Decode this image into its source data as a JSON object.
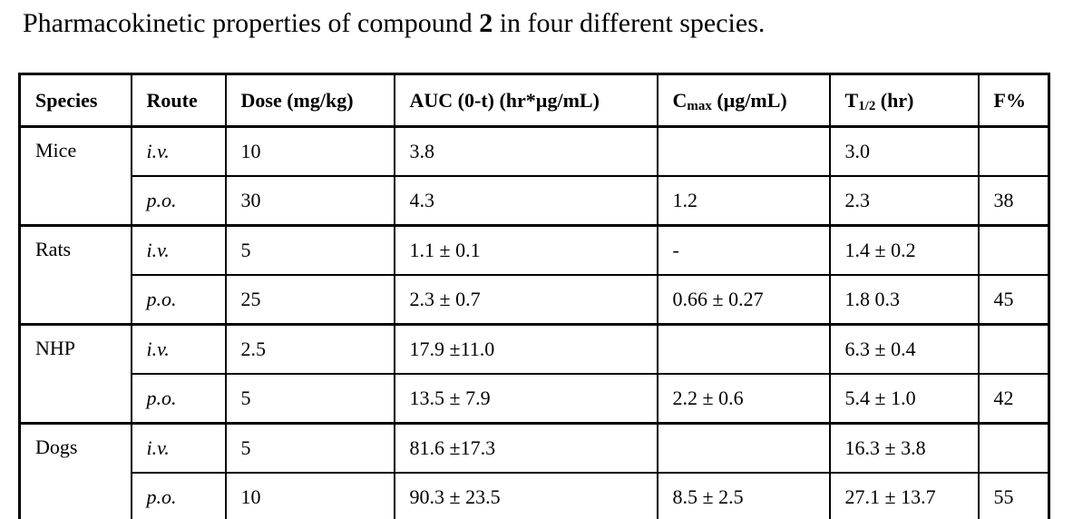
{
  "page": {
    "background": "#ffffff",
    "text_color": "#000000",
    "border_color": "#000000"
  },
  "caption": {
    "prefix": "Pharmacokinetic properties of compound ",
    "compound": "2",
    "suffix": " in four different species."
  },
  "table": {
    "columns": [
      {
        "pre": "Species",
        "sub": "",
        "post": ""
      },
      {
        "pre": "Route",
        "sub": "",
        "post": ""
      },
      {
        "pre": "Dose (mg/kg)",
        "sub": "",
        "post": ""
      },
      {
        "pre": "AUC (0-t) (hr*µg/mL)",
        "sub": "",
        "post": ""
      },
      {
        "pre": "C",
        "sub": "max",
        "post": " (µg/mL)"
      },
      {
        "pre": "T",
        "sub": "1/2",
        "post": " (hr)"
      },
      {
        "pre": "F%",
        "sub": "",
        "post": ""
      }
    ],
    "groups": [
      {
        "species": "Mice",
        "rows": [
          {
            "route": "i.v.",
            "dose": "10",
            "auc": "3.8",
            "cmax": "",
            "thalf": "3.0",
            "f": ""
          },
          {
            "route": "p.o.",
            "dose": "30",
            "auc": "4.3",
            "cmax": "1.2",
            "thalf": "2.3",
            "f": "38"
          }
        ]
      },
      {
        "species": "Rats",
        "rows": [
          {
            "route": "i.v.",
            "dose": "5",
            "auc": "1.1 ± 0.1",
            "cmax": "-",
            "thalf": "1.4 ± 0.2",
            "f": ""
          },
          {
            "route": "p.o.",
            "dose": "25",
            "auc": "2.3 ± 0.7",
            "cmax": "0.66 ± 0.27",
            "thalf": "1.8 0.3",
            "f": "45"
          }
        ]
      },
      {
        "species": "NHP",
        "rows": [
          {
            "route": "i.v.",
            "dose": "2.5",
            "auc": "17.9 ±11.0",
            "cmax": "",
            "thalf": "6.3 ± 0.4",
            "f": ""
          },
          {
            "route": "p.o.",
            "dose": "5",
            "auc": "13.5 ± 7.9",
            "cmax": "2.2 ± 0.6",
            "thalf": "5.4 ± 1.0",
            "f": "42"
          }
        ]
      },
      {
        "species": "Dogs",
        "rows": [
          {
            "route": "i.v.",
            "dose": "5",
            "auc": "81.6 ±17.3",
            "cmax": "",
            "thalf": "16.3 ± 3.8",
            "f": ""
          },
          {
            "route": "p.o.",
            "dose": "10",
            "auc": "90.3 ± 23.5",
            "cmax": "8.5 ± 2.5",
            "thalf": "27.1 ± 13.7",
            "f": "55"
          }
        ]
      }
    ]
  }
}
